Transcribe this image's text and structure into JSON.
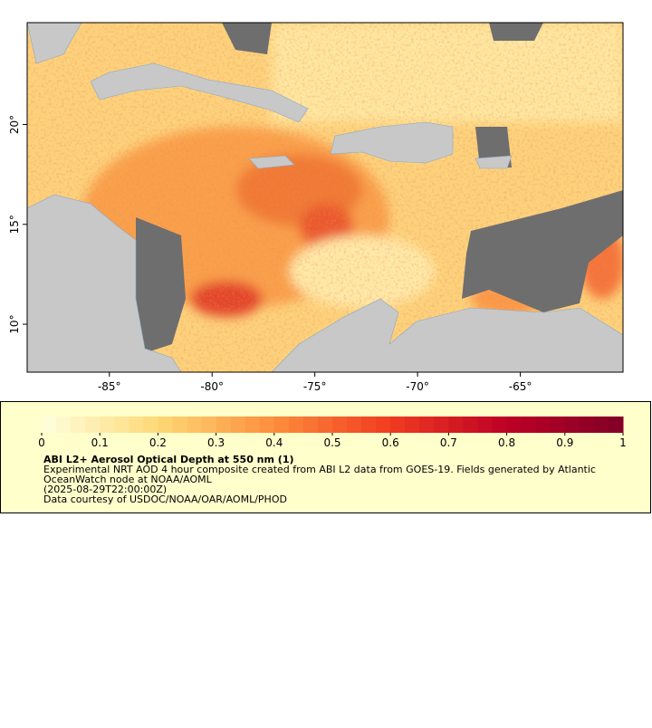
{
  "map": {
    "xlim": [
      -89,
      -60
    ],
    "ylim": [
      7.6,
      25.1
    ],
    "xticks": [
      {
        "value": -85,
        "label": "-85°"
      },
      {
        "value": -80,
        "label": "-80°"
      },
      {
        "value": -75,
        "label": "-75°"
      },
      {
        "value": -70,
        "label": "-70°"
      },
      {
        "value": -65,
        "label": "-65°"
      }
    ],
    "yticks": [
      {
        "value": 10,
        "label": "10°"
      },
      {
        "value": 15,
        "label": "15°"
      },
      {
        "value": 20,
        "label": "20°"
      }
    ]
  },
  "legend": {
    "title": "ABI L2+ Aerosol Optical Depth at 550 nm (1)",
    "lines": [
      "Experimental NRT AOD 4 hour composite created from ABI L2 data from GOES-19. Fields generated by Atlantic",
      "OceanWatch node at NOAA/AOML",
      "(2025-08-29T22:00:00Z)",
      "Data courtesy of USDOC/NOAA/OAR/AOML/PHOD"
    ],
    "colorbar": {
      "lim": [
        0,
        1
      ],
      "ticks": [
        0,
        0.1,
        0.2,
        0.3,
        0.4,
        0.5,
        0.6,
        0.7,
        0.8,
        0.9,
        1
      ],
      "colors": [
        "#ffffe0",
        "#fed976",
        "#fd8d3c",
        "#f03b20",
        "#bd0026",
        "#800026"
      ],
      "steps": 40
    }
  }
}
